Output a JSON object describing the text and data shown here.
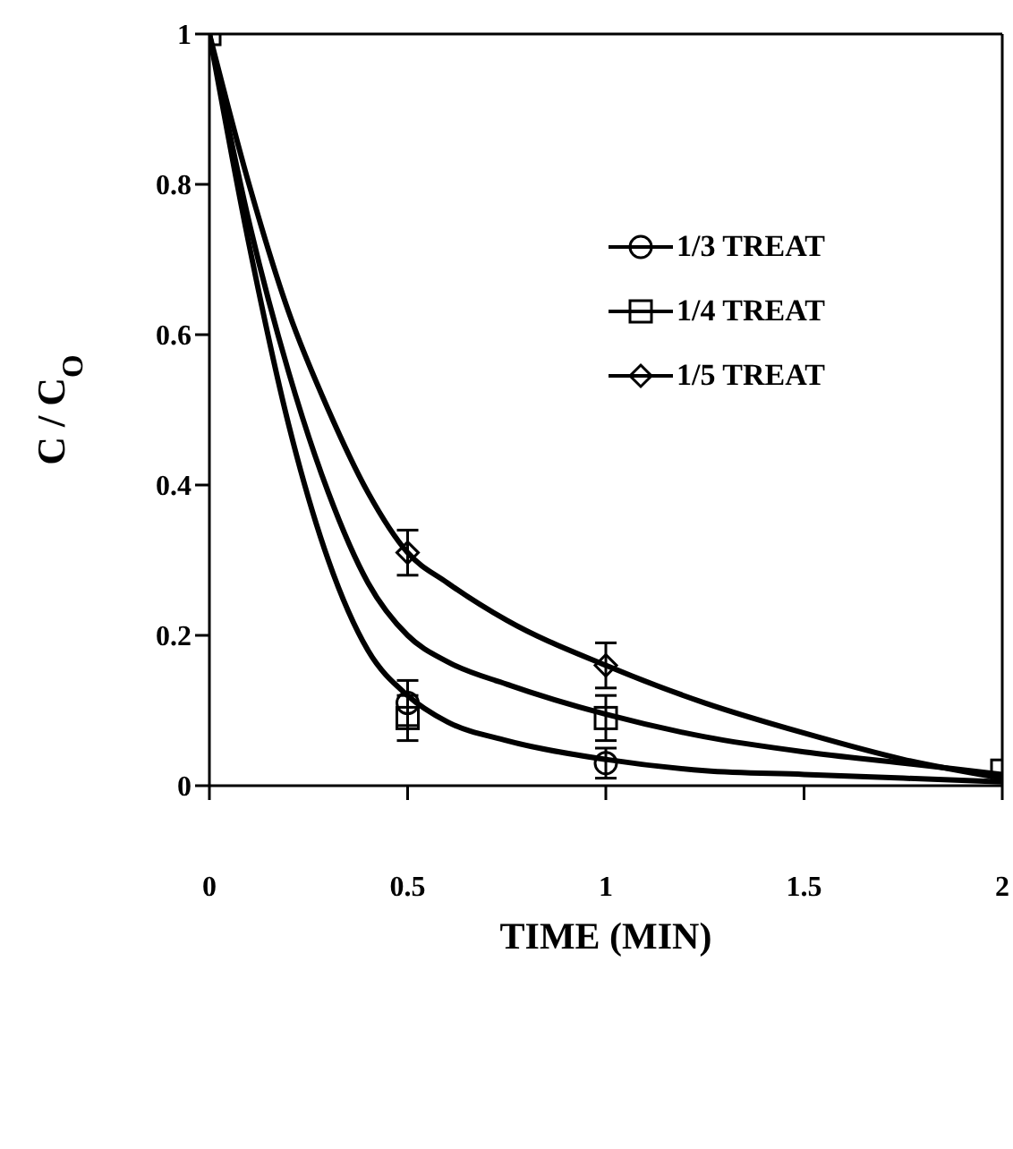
{
  "chart_data": {
    "type": "scatter",
    "xlabel": "TIME (MIN)",
    "ylabel": "C / C$_{O}$",
    "x": [
      0,
      0.5,
      1,
      2
    ],
    "xlim": [
      0,
      2
    ],
    "xticks": [
      0,
      0.5,
      1,
      1.5,
      2
    ],
    "ylim": [
      0,
      1
    ],
    "yticks": [
      0,
      {
        "value": 0.2,
        "label": "0.2"
      },
      {
        "value": 0.4,
        "label": "0.4"
      },
      {
        "value": 0.6,
        "label": "0.6"
      },
      {
        "value": 0.8,
        "label": "0.8"
      },
      1
    ],
    "legend": "top right",
    "grid": false,
    "series": [
      {
        "name": "1/3 TREAT",
        "color": "#000000",
        "marker": "circle",
        "values": [
          null,
          0.11,
          0.03,
          null
        ],
        "errors": [
          null,
          0.03,
          0.02,
          null
        ]
      },
      {
        "name": "1/4 TREAT",
        "color": "#000000",
        "marker": "square",
        "values": [
          1,
          0.09,
          0.09,
          0.02
        ],
        "errors": [
          null,
          0.03,
          0.03,
          null
        ]
      },
      {
        "name": "1/5 TREAT",
        "color": "#000000",
        "marker": "diamond",
        "values": [
          null,
          0.31,
          0.16,
          null
        ],
        "errors": [
          null,
          0.03,
          0.03,
          null
        ]
      },
      {
        "type": "line",
        "color": "#000000",
        "marker": "none",
        "x": [
          0,
          0.1,
          0.2,
          0.3,
          0.4,
          0.5,
          0.6,
          0.75,
          1,
          1.25,
          1.5,
          2
        ],
        "values": [
          1,
          0.72,
          0.48,
          0.3,
          0.18,
          0.12,
          0.085,
          0.06,
          0.035,
          0.02,
          0.015,
          0.005
        ]
      },
      {
        "type": "line",
        "color": "#000000",
        "marker": "none",
        "x": [
          0,
          0.1,
          0.2,
          0.3,
          0.4,
          0.5,
          0.6,
          0.75,
          1,
          1.25,
          1.5,
          1.75,
          2
        ],
        "values": [
          1,
          0.75,
          0.55,
          0.39,
          0.27,
          0.2,
          0.165,
          0.135,
          0.095,
          0.065,
          0.045,
          0.03,
          0.015
        ]
      },
      {
        "type": "line",
        "color": "#000000",
        "marker": "none",
        "x": [
          0,
          0.1,
          0.2,
          0.3,
          0.4,
          0.5,
          0.6,
          0.75,
          1,
          1.25,
          1.5,
          1.75,
          2
        ],
        "values": [
          1,
          0.8,
          0.63,
          0.5,
          0.39,
          0.31,
          0.27,
          0.22,
          0.16,
          0.11,
          0.07,
          0.035,
          0.01
        ]
      }
    ]
  }
}
